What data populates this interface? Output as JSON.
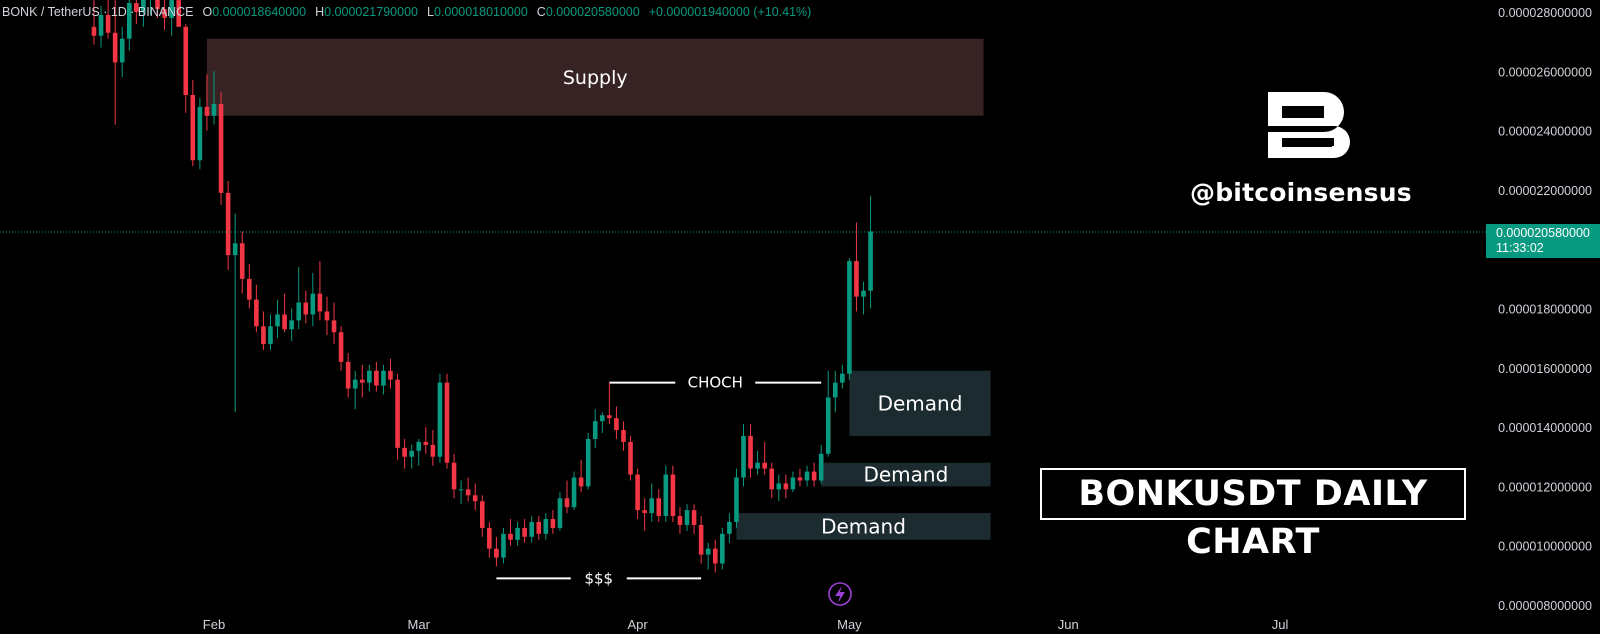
{
  "header": {
    "symbol": "BONK / TetherUS · 1D · BINANCE",
    "open_label": "O",
    "open": "0.000018640000",
    "high_label": "H",
    "high": "0.000021790000",
    "low_label": "L",
    "low": "0.000018010000",
    "close_label": "C",
    "close": "0.000020580000",
    "change": "+0.000001940000 (+10.41%)"
  },
  "watermark": {
    "logo_letter": "B",
    "handle": "@bitcoinsensus"
  },
  "title_box": "BONKUSDT DAILY CHART",
  "current_price": {
    "value": "0.000020580000",
    "countdown": "11:33:02"
  },
  "colors": {
    "up": "#089981",
    "down": "#f23645",
    "supply": "#382324",
    "demand": "#1c2b2f",
    "background": "#000000"
  },
  "icons": [
    "bolt-icon"
  ],
  "chart_data": {
    "type": "candlestick",
    "x_axis_months": [
      {
        "label": "Feb",
        "date": "2024-02-01"
      },
      {
        "label": "Mar",
        "date": "2024-03-01"
      },
      {
        "label": "Apr",
        "date": "2024-04-01"
      },
      {
        "label": "May",
        "date": "2024-05-01"
      },
      {
        "label": "Jun",
        "date": "2024-06-01"
      },
      {
        "label": "Jul",
        "date": "2024-07-01"
      }
    ],
    "y_ticks": [
      "0.000028000000",
      "0.000026000000",
      "0.000024000000",
      "0.000022000000",
      "0.000020000000",
      "0.000018000000",
      "0.000016000000",
      "0.000014000000",
      "0.000012000000",
      "0.000010000000",
      "0.000008000000"
    ],
    "y_tick_values": [
      28,
      26,
      24,
      22,
      20,
      18,
      16,
      14,
      12,
      10,
      8
    ],
    "y_unit_multiplier": 1e-06,
    "ylim": [
      8,
      28
    ],
    "candles_ohlc_x1e6": [
      [
        "2024-01-15",
        27.5,
        28.8,
        26.9,
        27.2
      ],
      [
        "2024-01-16",
        27.2,
        28.2,
        26.8,
        27.9
      ],
      [
        "2024-01-17",
        27.9,
        28.6,
        27.1,
        27.3
      ],
      [
        "2024-01-18",
        27.3,
        28.4,
        24.2,
        26.3
      ],
      [
        "2024-01-19",
        26.3,
        27.5,
        25.8,
        27.1
      ],
      [
        "2024-01-20",
        27.1,
        28.9,
        26.7,
        28.3
      ],
      [
        "2024-01-21",
        28.3,
        29.2,
        27.6,
        28.0
      ],
      [
        "2024-01-22",
        28.0,
        29.0,
        27.5,
        28.6
      ],
      [
        "2024-01-23",
        28.6,
        29.5,
        27.9,
        28.7
      ],
      [
        "2024-01-24",
        28.7,
        29.4,
        27.8,
        28.1
      ],
      [
        "2024-01-25",
        28.1,
        29.0,
        27.4,
        27.8
      ],
      [
        "2024-01-26",
        27.8,
        28.6,
        27.2,
        28.4
      ],
      [
        "2024-01-27",
        28.4,
        28.9,
        27.6,
        27.5
      ],
      [
        "2024-01-28",
        27.5,
        27.6,
        24.6,
        25.2
      ],
      [
        "2024-01-29",
        25.2,
        25.7,
        22.8,
        23.0
      ],
      [
        "2024-01-30",
        23.0,
        25.1,
        22.7,
        24.8
      ],
      [
        "2024-01-31",
        24.8,
        25.9,
        24.0,
        24.5
      ],
      [
        "2024-02-01",
        24.5,
        26.0,
        24.2,
        24.9
      ],
      [
        "2024-02-02",
        24.9,
        25.3,
        21.5,
        21.9
      ],
      [
        "2024-02-03",
        21.9,
        22.3,
        19.3,
        19.8
      ],
      [
        "2024-02-04",
        19.8,
        21.2,
        14.5,
        20.2
      ],
      [
        "2024-02-05",
        20.2,
        20.6,
        18.5,
        19.0
      ],
      [
        "2024-02-06",
        19.0,
        19.5,
        18.0,
        18.3
      ],
      [
        "2024-02-07",
        18.3,
        18.8,
        17.2,
        17.4
      ],
      [
        "2024-02-08",
        17.4,
        17.9,
        16.6,
        16.8
      ],
      [
        "2024-02-09",
        16.8,
        17.8,
        16.6,
        17.4
      ],
      [
        "2024-02-10",
        17.4,
        18.3,
        17.0,
        17.8
      ],
      [
        "2024-02-11",
        17.8,
        18.5,
        17.2,
        17.3
      ],
      [
        "2024-02-12",
        17.3,
        18.0,
        16.9,
        17.6
      ],
      [
        "2024-02-13",
        17.6,
        19.4,
        17.3,
        18.2
      ],
      [
        "2024-02-14",
        18.2,
        18.6,
        17.5,
        17.8
      ],
      [
        "2024-02-15",
        17.8,
        19.2,
        17.4,
        18.5
      ],
      [
        "2024-02-16",
        18.5,
        19.6,
        17.6,
        17.9
      ],
      [
        "2024-02-17",
        17.9,
        18.4,
        17.1,
        17.6
      ],
      [
        "2024-02-18",
        17.6,
        18.2,
        16.8,
        17.2
      ],
      [
        "2024-02-19",
        17.2,
        17.4,
        15.9,
        16.2
      ],
      [
        "2024-02-20",
        16.2,
        16.5,
        15.0,
        15.3
      ],
      [
        "2024-02-21",
        15.3,
        15.9,
        14.6,
        15.6
      ],
      [
        "2024-02-22",
        15.6,
        16.1,
        15.0,
        15.5
      ],
      [
        "2024-02-23",
        15.5,
        16.1,
        15.2,
        15.9
      ],
      [
        "2024-02-24",
        15.9,
        16.2,
        15.2,
        15.4
      ],
      [
        "2024-02-25",
        15.4,
        16.1,
        15.1,
        15.9
      ],
      [
        "2024-02-26",
        15.9,
        16.3,
        15.3,
        15.6
      ],
      [
        "2024-02-27",
        15.6,
        15.8,
        12.9,
        13.3
      ],
      [
        "2024-02-28",
        13.3,
        13.6,
        12.6,
        13.0
      ],
      [
        "2024-02-29",
        13.0,
        13.4,
        12.6,
        13.2
      ],
      [
        "2024-03-01",
        13.2,
        13.6,
        12.7,
        13.5
      ],
      [
        "2024-03-02",
        13.5,
        14.0,
        13.1,
        13.4
      ],
      [
        "2024-03-03",
        13.4,
        13.9,
        12.7,
        13.0
      ],
      [
        "2024-03-04",
        13.0,
        15.8,
        12.8,
        15.5
      ],
      [
        "2024-03-05",
        15.5,
        15.8,
        12.6,
        12.8
      ],
      [
        "2024-03-06",
        12.8,
        13.1,
        11.6,
        11.9
      ],
      [
        "2024-03-07",
        11.9,
        12.2,
        11.4,
        11.9
      ],
      [
        "2024-03-08",
        11.9,
        12.3,
        11.5,
        11.7
      ],
      [
        "2024-03-09",
        11.7,
        12.1,
        11.2,
        11.5
      ],
      [
        "2024-03-10",
        11.5,
        11.7,
        10.3,
        10.6
      ],
      [
        "2024-03-11",
        10.6,
        10.8,
        9.6,
        9.9
      ],
      [
        "2024-03-12",
        9.9,
        10.3,
        9.3,
        9.6
      ],
      [
        "2024-03-13",
        9.6,
        10.6,
        9.4,
        10.4
      ],
      [
        "2024-03-14",
        10.4,
        10.9,
        10.0,
        10.2
      ],
      [
        "2024-03-15",
        10.2,
        10.8,
        10.0,
        10.6
      ],
      [
        "2024-03-16",
        10.6,
        10.9,
        10.1,
        10.3
      ],
      [
        "2024-03-17",
        10.3,
        11.0,
        10.1,
        10.8
      ],
      [
        "2024-03-18",
        10.8,
        11.0,
        10.2,
        10.4
      ],
      [
        "2024-03-19",
        10.4,
        11.1,
        10.2,
        10.9
      ],
      [
        "2024-03-20",
        10.9,
        11.2,
        10.4,
        10.6
      ],
      [
        "2024-03-21",
        10.6,
        11.8,
        10.5,
        11.6
      ],
      [
        "2024-03-22",
        11.6,
        12.2,
        11.1,
        11.3
      ],
      [
        "2024-03-23",
        11.3,
        12.5,
        11.2,
        12.3
      ],
      [
        "2024-03-24",
        12.3,
        12.9,
        11.8,
        12.0
      ],
      [
        "2024-03-25",
        12.0,
        13.8,
        11.9,
        13.6
      ],
      [
        "2024-03-26",
        13.6,
        14.6,
        13.3,
        14.2
      ],
      [
        "2024-03-27",
        14.2,
        14.5,
        13.8,
        14.4
      ],
      [
        "2024-03-28",
        14.4,
        15.5,
        14.1,
        14.3
      ],
      [
        "2024-03-29",
        14.3,
        14.7,
        13.6,
        13.9
      ],
      [
        "2024-03-30",
        13.9,
        14.2,
        13.2,
        13.5
      ],
      [
        "2024-03-31",
        13.5,
        13.7,
        12.2,
        12.4
      ],
      [
        "2024-04-01",
        12.4,
        12.6,
        10.9,
        11.2
      ],
      [
        "2024-04-02",
        11.2,
        11.6,
        10.5,
        11.1
      ],
      [
        "2024-04-03",
        11.1,
        12.1,
        10.8,
        11.6
      ],
      [
        "2024-04-04",
        11.6,
        11.9,
        10.8,
        11.0
      ],
      [
        "2024-04-05",
        11.0,
        12.7,
        10.8,
        12.4
      ],
      [
        "2024-04-06",
        12.4,
        12.7,
        10.8,
        11.0
      ],
      [
        "2024-04-07",
        11.0,
        11.3,
        10.4,
        10.7
      ],
      [
        "2024-04-08",
        10.7,
        11.4,
        10.5,
        11.2
      ],
      [
        "2024-04-09",
        11.2,
        11.4,
        10.4,
        10.7
      ],
      [
        "2024-04-10",
        10.7,
        11.0,
        9.4,
        9.7
      ],
      [
        "2024-04-11",
        9.7,
        10.1,
        9.2,
        9.9
      ],
      [
        "2024-04-12",
        9.9,
        10.2,
        9.1,
        9.4
      ],
      [
        "2024-04-13",
        9.4,
        10.6,
        9.2,
        10.4
      ],
      [
        "2024-04-14",
        10.4,
        11.1,
        10.1,
        10.8
      ],
      [
        "2024-04-15",
        10.8,
        12.6,
        10.6,
        12.3
      ],
      [
        "2024-04-16",
        12.3,
        14.1,
        12.0,
        13.7
      ],
      [
        "2024-04-17",
        13.7,
        14.1,
        12.3,
        12.6
      ],
      [
        "2024-04-18",
        12.6,
        13.2,
        12.4,
        12.8
      ],
      [
        "2024-04-19",
        12.8,
        13.5,
        12.4,
        12.6
      ],
      [
        "2024-04-20",
        12.6,
        12.8,
        11.6,
        11.9
      ],
      [
        "2024-04-21",
        11.9,
        12.4,
        11.5,
        12.1
      ],
      [
        "2024-04-22",
        12.1,
        12.4,
        11.6,
        11.9
      ],
      [
        "2024-04-23",
        11.9,
        12.5,
        11.8,
        12.3
      ],
      [
        "2024-04-24",
        12.3,
        12.6,
        12.0,
        12.2
      ],
      [
        "2024-04-25",
        12.2,
        12.7,
        12.0,
        12.5
      ],
      [
        "2024-04-26",
        12.5,
        12.8,
        12.0,
        12.2
      ],
      [
        "2024-04-27",
        12.2,
        13.4,
        12.1,
        13.1
      ],
      [
        "2024-04-28",
        13.1,
        15.9,
        13.0,
        15.0
      ],
      [
        "2024-04-29",
        15.0,
        15.9,
        14.5,
        15.5
      ],
      [
        "2024-04-30",
        15.5,
        16.1,
        15.3,
        15.8
      ],
      [
        "2024-05-01",
        15.8,
        19.7,
        15.6,
        19.6
      ],
      [
        "2024-05-02",
        19.6,
        20.9,
        17.9,
        18.4
      ],
      [
        "2024-05-03",
        18.4,
        18.9,
        17.8,
        18.6
      ],
      [
        "2024-05-04",
        18.6,
        21.8,
        18.0,
        20.6
      ]
    ],
    "zones": [
      {
        "label": "Supply",
        "type": "supply",
        "from": "2024-01-31",
        "to": "2024-05-20",
        "bottom": 24.5,
        "top": 27.1
      },
      {
        "label": "Demand",
        "type": "demand",
        "from": "2024-05-01",
        "to": "2024-05-21",
        "bottom": 13.7,
        "top": 15.9
      },
      {
        "label": "Demand",
        "type": "demand",
        "from": "2024-04-27",
        "to": "2024-05-21",
        "bottom": 12.0,
        "top": 12.8
      },
      {
        "label": "Demand",
        "type": "demand",
        "from": "2024-04-15",
        "to": "2024-05-21",
        "bottom": 10.2,
        "top": 11.1
      }
    ],
    "annotations": [
      {
        "label": "CHOCH",
        "from": "2024-03-28",
        "to": "2024-04-27",
        "y": 15.5
      },
      {
        "label": "$$$",
        "from": "2024-03-12",
        "to": "2024-04-10",
        "y": 8.9
      }
    ],
    "current_price_line": 20.58
  }
}
